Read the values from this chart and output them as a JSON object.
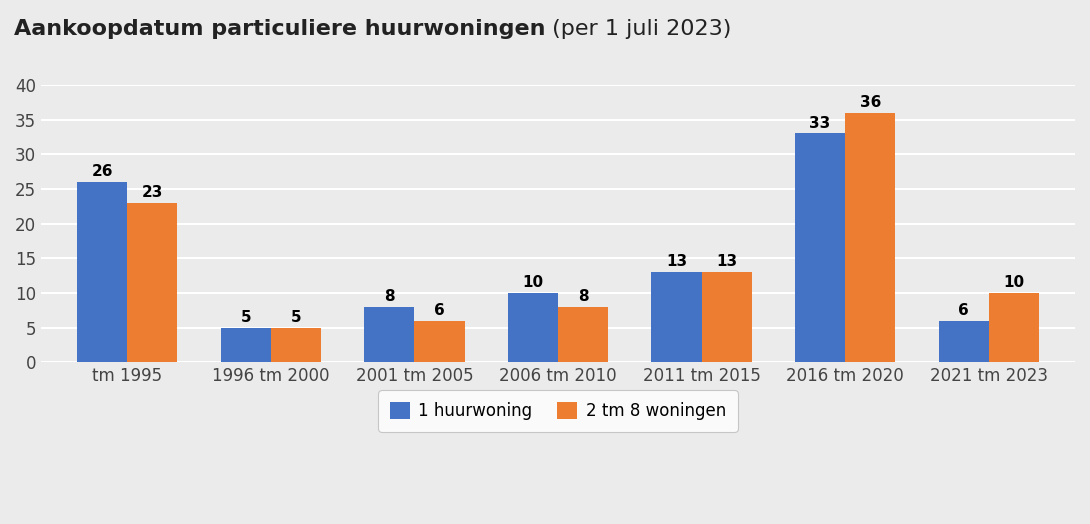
{
  "title_bold": "Aankoopdatum particuliere huurwoningen",
  "title_regular": " (per 1 juli 2023)",
  "categories": [
    "tm 1995",
    "1996 tm 2000",
    "2001 tm 2005",
    "2006 tm 2010",
    "2011 tm 2015",
    "2016 tm 2020",
    "2021 tm 2023"
  ],
  "series1_label": "1 huurwoning",
  "series2_label": "2 tm 8 woningen",
  "series1_values": [
    26,
    5,
    8,
    10,
    13,
    33,
    6
  ],
  "series2_values": [
    23,
    5,
    6,
    8,
    13,
    36,
    10
  ],
  "series1_color": "#4472C4",
  "series2_color": "#ED7D31",
  "background_color": "#EBEBEB",
  "plot_bg_color": "#EBEBEB",
  "ylim": [
    0,
    40
  ],
  "yticks": [
    0,
    5,
    10,
    15,
    20,
    25,
    30,
    35,
    40
  ],
  "bar_width": 0.35,
  "label_fontsize": 11,
  "title_fontsize": 16,
  "legend_fontsize": 12,
  "tick_fontsize": 12,
  "grid_color": "#FFFFFF",
  "grid_linewidth": 1.5
}
